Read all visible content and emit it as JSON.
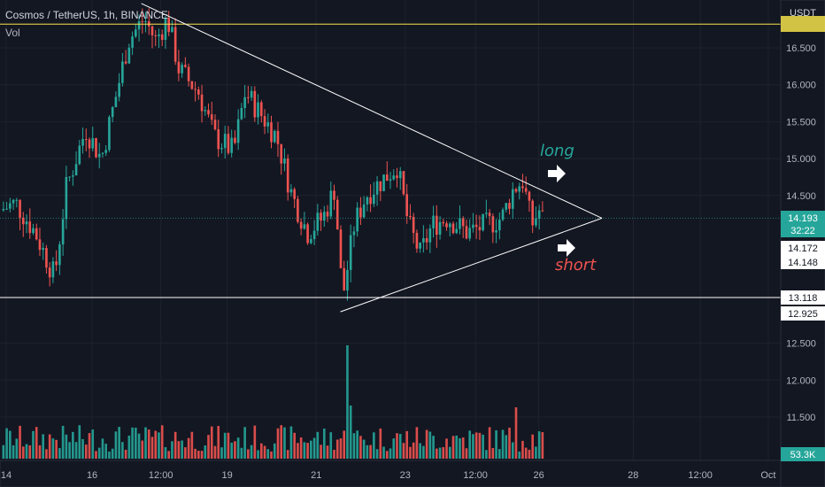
{
  "header": {
    "symbol": "Cosmos / TetherUS, 1h, BINANCE",
    "volume_label": "Vol",
    "currency": "USDT"
  },
  "colors": {
    "background": "#131722",
    "up": "#26a69a",
    "down": "#ef5350",
    "grid": "#1e222d",
    "resistance": "#f6e24a",
    "price_line": "#26a69a"
  },
  "annotations": {
    "long": "long",
    "short": "short",
    "long_color": "#26a69a",
    "short_color": "#ef5350"
  },
  "chart_data": {
    "type": "candlestick",
    "title": "Cosmos / TetherUS, 1h, BINANCE",
    "ylim": [
      11.2,
      17.2
    ],
    "y_ticks": [
      16.5,
      16.0,
      15.5,
      15.0,
      14.5,
      12.5,
      12.0,
      11.5
    ],
    "y_tick_labels": [
      "16.500",
      "16.000",
      "15.500",
      "15.000",
      "14.500",
      "12.500",
      "12.000",
      "11.500"
    ],
    "x_tick_labels": [
      "14",
      "16",
      "12:00",
      "19",
      "21",
      "23",
      "12:00",
      "26",
      "28",
      "12:00",
      "Oct"
    ],
    "price_labels": [
      {
        "value": 14.193,
        "text": "14.193",
        "sub": "32:22",
        "bg": "#26a69a",
        "color": "#ffffff"
      },
      {
        "value": 14.172,
        "text": "14.172",
        "bg": "#ffffff",
        "color": "#131722"
      },
      {
        "value": 14.148,
        "text": "14.148",
        "bg": "#ffffff",
        "color": "#131722"
      },
      {
        "value": 13.118,
        "text": "13.118",
        "bg": "#ffffff",
        "color": "#131722"
      },
      {
        "value": 12.925,
        "text": "12.925",
        "bg": "#ffffff",
        "color": "#131722"
      }
    ],
    "volume_label": {
      "text": "53.3K",
      "bg": "#26a69a"
    },
    "horizontal_lines": [
      {
        "price": 16.82,
        "color": "#f6e24a"
      },
      {
        "price": 13.118,
        "color": "#ffffff"
      }
    ],
    "trendlines": [
      {
        "from": [
          0.181,
          17.1
        ],
        "to": [
          0.771,
          14.193
        ],
        "color": "#ffffff"
      },
      {
        "from": [
          0.436,
          12.925
        ],
        "to": [
          0.771,
          14.193
        ],
        "color": "#ffffff"
      }
    ],
    "close_anchors": [
      [
        0.0,
        14.3
      ],
      [
        0.02,
        14.4
      ],
      [
        0.045,
        14.0
      ],
      [
        0.07,
        13.4
      ],
      [
        0.085,
        14.6
      ],
      [
        0.11,
        15.4
      ],
      [
        0.13,
        15.0
      ],
      [
        0.15,
        15.9
      ],
      [
        0.165,
        16.6
      ],
      [
        0.185,
        16.9
      ],
      [
        0.2,
        16.6
      ],
      [
        0.215,
        16.9
      ],
      [
        0.23,
        16.2
      ],
      [
        0.255,
        15.9
      ],
      [
        0.275,
        15.3
      ],
      [
        0.3,
        15.1
      ],
      [
        0.315,
        15.9
      ],
      [
        0.335,
        15.6
      ],
      [
        0.355,
        15.3
      ],
      [
        0.375,
        14.5
      ],
      [
        0.395,
        14.0
      ],
      [
        0.415,
        14.2
      ],
      [
        0.43,
        14.6
      ],
      [
        0.44,
        13.1
      ],
      [
        0.455,
        14.1
      ],
      [
        0.47,
        14.5
      ],
      [
        0.49,
        14.7
      ],
      [
        0.51,
        14.9
      ],
      [
        0.525,
        14.1
      ],
      [
        0.54,
        13.7
      ],
      [
        0.555,
        14.1
      ],
      [
        0.575,
        14.2
      ],
      [
        0.6,
        14.0
      ],
      [
        0.625,
        14.1
      ],
      [
        0.645,
        14.2
      ],
      [
        0.66,
        14.6
      ],
      [
        0.672,
        14.7
      ],
      [
        0.683,
        14.1
      ],
      [
        0.693,
        14.3
      ],
      [
        0.697,
        14.193
      ]
    ]
  }
}
